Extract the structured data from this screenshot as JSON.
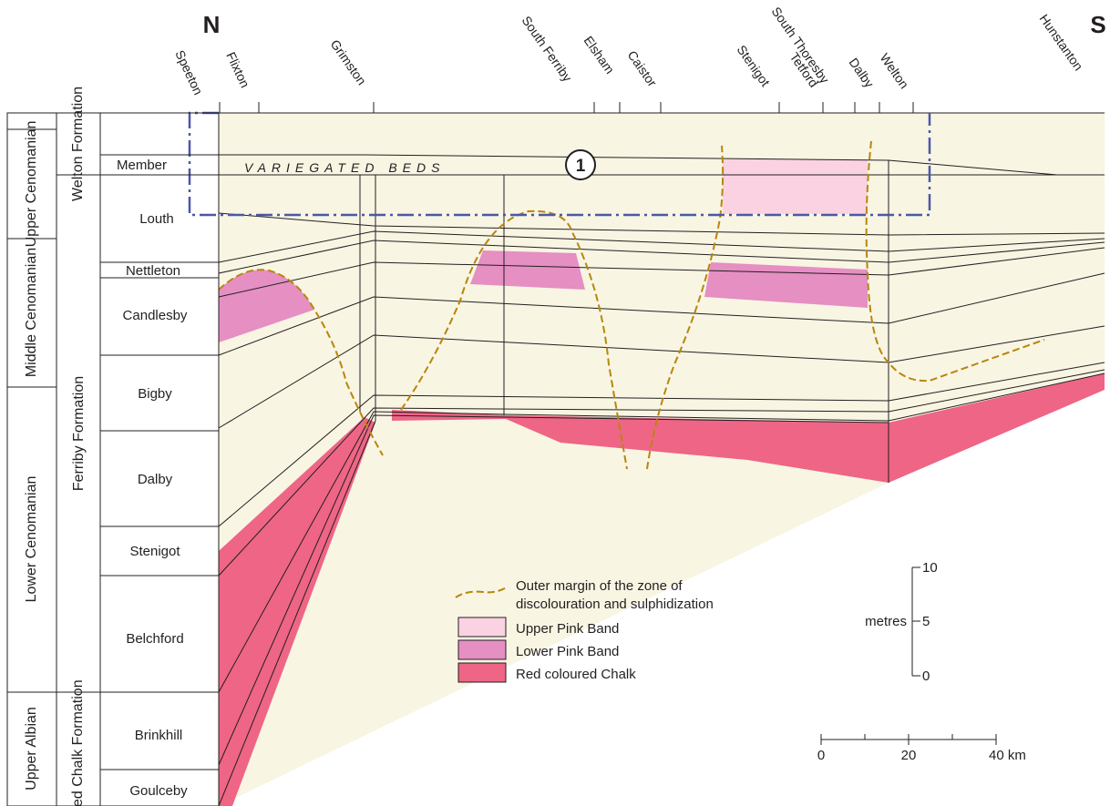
{
  "directions": {
    "north": "N",
    "south": "S"
  },
  "localities": [
    "Speeton",
    "Flixton",
    "Grimston",
    "South Ferriby",
    "Elsham",
    "Caistor",
    "Stenigot",
    "Tetford",
    "South Thoresby",
    "Dalby",
    "Welton",
    "Hunstanton"
  ],
  "stages": [
    "Upper Cenomanian",
    "Middle Cenomanian",
    "Lower Cenomanian",
    "Upper Albian"
  ],
  "formations": [
    "Welton Formation",
    "Ferriby Formation",
    "Red Chalk Formation"
  ],
  "members": [
    "Member",
    "Louth",
    "Nettleton",
    "Candlesby",
    "Bigby",
    "Dalby",
    "Stenigot",
    "Belchford",
    "Brinkhill",
    "Goulceby"
  ],
  "beds_label": "VARIEGATED BEDS",
  "marker": "1",
  "legend": {
    "margin_line_1": "Outer margin of the zone of",
    "margin_line_2": "discolouration and sulphidization",
    "upper_pink": "Upper Pink Band",
    "lower_pink": "Lower Pink Band",
    "red_chalk": "Red coloured Chalk"
  },
  "vertical_scale": {
    "label": "metres",
    "ticks": [
      "10",
      "5",
      "0"
    ]
  },
  "horizontal_scale": {
    "ticks": [
      "0",
      "20",
      "40 km"
    ]
  },
  "colors": {
    "background": "#f8f5e3",
    "upper_pink": "#fad2e2",
    "lower_pink": "#e58fc3",
    "red_chalk": "#ee6586",
    "margin_line": "#b8860b",
    "box_line": "#4b57a8"
  }
}
